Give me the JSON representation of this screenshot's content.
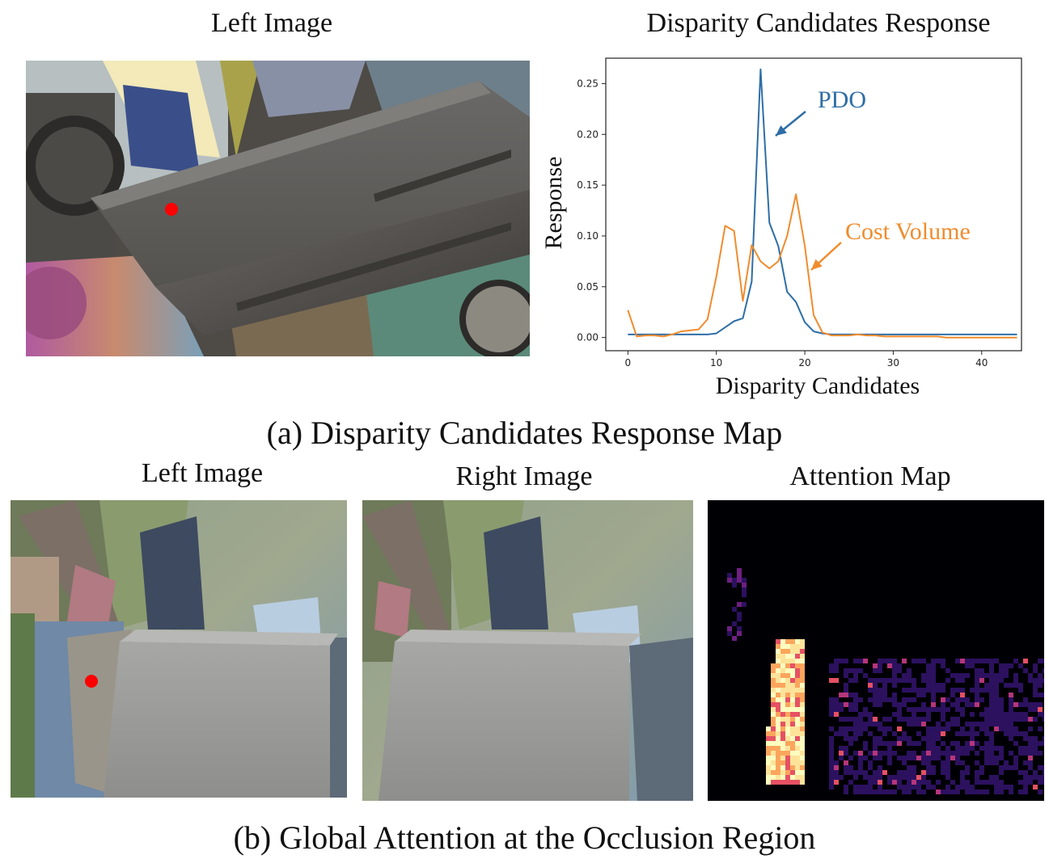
{
  "panel_a": {
    "left_title": "Left Image",
    "chart_title": "Disparity Candidates Response",
    "caption": "(a) Disparity Candidates Response Map"
  },
  "panel_b": {
    "left_title": "Left Image",
    "right_title": "Right Image",
    "attention_title": "Attention Map",
    "caption": "(b) Global Attention at the Occlusion Region"
  },
  "colors": {
    "pdo": "#2e6ea6",
    "cost_volume": "#f08c2e",
    "marker": "#ff0000"
  },
  "chart_data": {
    "type": "line",
    "title": "",
    "xlabel": "Disparity Candidates",
    "ylabel": "Response",
    "xlim": [
      -2.5,
      44.5
    ],
    "ylim": [
      -0.013,
      0.275
    ],
    "xticks": [
      0,
      10,
      20,
      30,
      40
    ],
    "yticks": [
      0.0,
      0.05,
      0.1,
      0.15,
      0.2,
      0.25
    ],
    "ytick_labels": [
      "0.00",
      "0.05",
      "0.10",
      "0.15",
      "0.20",
      "0.25"
    ],
    "grid": false,
    "series": [
      {
        "name": "PDO",
        "x": [
          0,
          1,
          2,
          3,
          4,
          5,
          6,
          7,
          8,
          9,
          10,
          11,
          12,
          13,
          14,
          15,
          16,
          17,
          18,
          19,
          20,
          21,
          22,
          23,
          24,
          25,
          26,
          27,
          28,
          29,
          30,
          31,
          32,
          33,
          34,
          35,
          36,
          37,
          38,
          39,
          40,
          41,
          42,
          43,
          44
        ],
        "values": [
          0.003,
          0.003,
          0.003,
          0.003,
          0.003,
          0.003,
          0.003,
          0.003,
          0.003,
          0.003,
          0.004,
          0.01,
          0.016,
          0.019,
          0.055,
          0.264,
          0.113,
          0.09,
          0.045,
          0.035,
          0.015,
          0.006,
          0.004,
          0.003,
          0.003,
          0.003,
          0.003,
          0.003,
          0.003,
          0.003,
          0.003,
          0.003,
          0.003,
          0.003,
          0.003,
          0.003,
          0.003,
          0.003,
          0.003,
          0.003,
          0.003,
          0.003,
          0.003,
          0.003,
          0.003
        ]
      },
      {
        "name": "Cost Volume",
        "x": [
          0,
          1,
          2,
          3,
          4,
          5,
          6,
          7,
          8,
          9,
          10,
          11,
          12,
          13,
          14,
          15,
          16,
          17,
          18,
          19,
          20,
          21,
          22,
          23,
          24,
          25,
          26,
          27,
          28,
          29,
          30,
          31,
          32,
          33,
          34,
          35,
          36,
          37,
          38,
          39,
          40,
          41,
          42,
          43,
          44
        ],
        "values": [
          0.027,
          0.001,
          0.002,
          0.002,
          0.001,
          0.003,
          0.006,
          0.007,
          0.008,
          0.018,
          0.06,
          0.11,
          0.105,
          0.036,
          0.091,
          0.075,
          0.068,
          0.075,
          0.1,
          0.141,
          0.09,
          0.022,
          0.005,
          0.002,
          0.002,
          0.002,
          0.003,
          0.002,
          0.002,
          0.001,
          0.001,
          0.001,
          0.001,
          0.001,
          0.001,
          0.001,
          0.0,
          0.0,
          0.0,
          0.0,
          0.0,
          0.0,
          0.0,
          0.0,
          0.0
        ]
      }
    ],
    "annotations": [
      {
        "text": "PDO",
        "target_x": 16,
        "target_y": 0.2,
        "color": "#2e6ea6"
      },
      {
        "text": "Cost Volume",
        "target_x": 20.2,
        "target_y": 0.065,
        "color": "#f08c2e"
      }
    ]
  }
}
